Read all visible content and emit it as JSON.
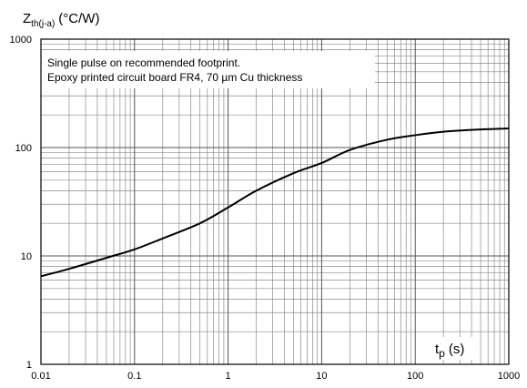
{
  "chart_data": {
    "type": "line",
    "xscale": "log",
    "yscale": "log",
    "xlim": [
      0.01,
      1000
    ],
    "ylim": [
      1,
      1000
    ],
    "grid": true,
    "ylabel": {
      "main": "Z",
      "sub": "th(j-a)",
      "unit": "(°C/W)"
    },
    "xlabel": {
      "main": "t",
      "sub": "p",
      "unit": "(s)"
    },
    "x_ticks": [
      "0.01",
      "0.1",
      "1",
      "10",
      "100",
      "1000"
    ],
    "y_ticks": [
      "1000",
      "100",
      "10",
      "1"
    ],
    "annotation": [
      "Single pulse on recommended footprint.",
      "Epoxy printed circuit board FR4, 70 µm Cu thickness"
    ],
    "series": [
      {
        "x": [
          0.01,
          0.02,
          0.05,
          0.1,
          0.2,
          0.5,
          1,
          2,
          5,
          10,
          20,
          50,
          100,
          200,
          500,
          1000
        ],
        "y": [
          6.5,
          7.6,
          9.6,
          11.5,
          14.5,
          20,
          28,
          40,
          58,
          72,
          95,
          118,
          130,
          140,
          147,
          150
        ],
        "color": "#000000"
      }
    ]
  }
}
